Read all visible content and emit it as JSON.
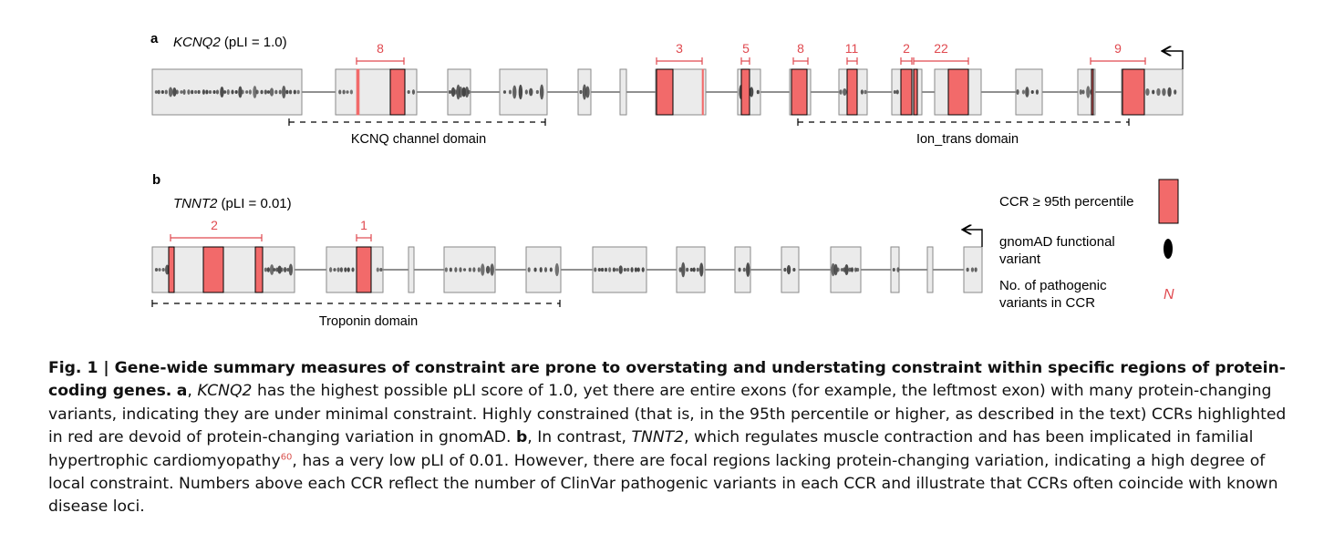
{
  "panel_a": {
    "letter": "a",
    "gene": "KCNQ2",
    "pli_text": " (pLI = 1.0)",
    "ccr_counts": [
      "8",
      "3",
      "5",
      "8",
      "11",
      "2",
      "22",
      "9"
    ],
    "domains": [
      "KCNQ channel domain",
      "Ion_trans domain"
    ]
  },
  "panel_b": {
    "letter": "b",
    "gene": "TNNT2",
    "pli_text": " (pLI = 0.01)",
    "ccr_counts": [
      "2",
      "1"
    ],
    "domains": [
      "Troponin domain"
    ]
  },
  "legend": {
    "ccr_label": "CCR ≥ 95th percentile",
    "variant_line1": "gnomAD functional",
    "variant_line2": "variant",
    "pathogenic_line1": "No. of pathogenic",
    "pathogenic_line2": "variants in CCR",
    "pathogenic_symbol": "N"
  },
  "caption": {
    "fig_label": "Fig. 1 | ",
    "title": "Gene-wide summary measures of constraint are prone to overstating and understating constraint within specific regions of protein-coding genes.",
    "a_label": "a",
    "a_gene": "KCNQ2",
    "a_text": " has the highest possible pLI score of 1.0, yet there are entire exons (for example, the leftmost exon) with many protein-changing variants, indicating they are under minimal constraint. Highly constrained (that is, in the 95th percentile or higher, as described in the text) CCRs highlighted in red are devoid of protein-changing variation in gnomAD. ",
    "b_label": "b",
    "b_text1": ", In contrast, ",
    "b_gene": "TNNT2",
    "b_text2": ", which regulates muscle contraction and has been implicated in familial hypertrophic cardiomyopathy",
    "ref": "60",
    "b_text3": ", has a very low pLI of 0.01. However, there are focal regions lacking protein-changing variation, indicating a high degree of local constraint. Numbers above each CCR reflect the number of ClinVar pathogenic variants in each CCR and illustrate that CCRs often coincide with known disease loci."
  },
  "colors": {
    "ccr": "#f26a6a",
    "exon_fill": "#ebebeb",
    "exon_stroke": "#8a8a8a",
    "annotation": "#e0494f",
    "variant": "#444444"
  }
}
